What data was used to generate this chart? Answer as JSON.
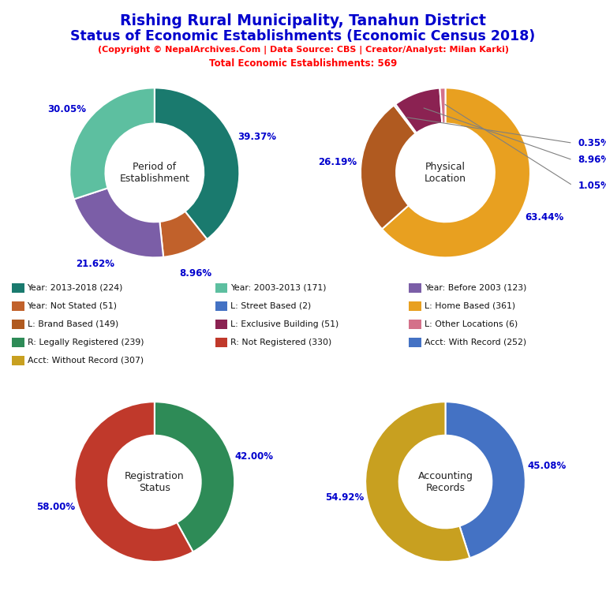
{
  "title_line1": "Rishing Rural Municipality, Tanahun District",
  "title_line2": "Status of Economic Establishments (Economic Census 2018)",
  "subtitle": "(Copyright © NepalArchives.Com | Data Source: CBS | Creator/Analyst: Milan Karki)",
  "total_line": "Total Economic Establishments: 569",
  "title_color": "#0000CD",
  "subtitle_color": "#FF0000",
  "pie1_title": "Period of\nEstablishment",
  "pie1_values": [
    224,
    51,
    123,
    171
  ],
  "pie1_pcts": [
    "39.37%",
    "8.96%",
    "21.62%",
    "30.05%"
  ],
  "pie1_colors": [
    "#1a7a6e",
    "#c1612b",
    "#7b5ea7",
    "#5dbfa0"
  ],
  "pie1_startangle": 90,
  "pie2_title": "Physical\nLocation",
  "pie2_values": [
    361,
    149,
    2,
    51,
    6
  ],
  "pie2_pcts": [
    "63.44%",
    "26.19%",
    "0.35%",
    "8.96%",
    "1.05%"
  ],
  "pie2_colors": [
    "#e8a020",
    "#b05a20",
    "#4472c4",
    "#8b2252",
    "#d4718a"
  ],
  "pie2_startangle": 90,
  "pie3_title": "Registration\nStatus",
  "pie3_values": [
    239,
    330
  ],
  "pie3_pcts": [
    "42.00%",
    "58.00%"
  ],
  "pie3_colors": [
    "#2e8b57",
    "#c0392b"
  ],
  "pie3_startangle": 90,
  "pie4_title": "Accounting\nRecords",
  "pie4_values": [
    252,
    307
  ],
  "pie4_pcts": [
    "45.08%",
    "54.92%"
  ],
  "pie4_colors": [
    "#4472c4",
    "#c8a020"
  ],
  "pie4_startangle": 90,
  "legend_items": [
    {
      "label": "Year: 2013-2018 (224)",
      "color": "#1a7a6e"
    },
    {
      "label": "Year: Not Stated (51)",
      "color": "#c1612b"
    },
    {
      "label": "L: Brand Based (149)",
      "color": "#b05a20"
    },
    {
      "label": "R: Legally Registered (239)",
      "color": "#2e8b57"
    },
    {
      "label": "Acct: Without Record (307)",
      "color": "#c8a020"
    },
    {
      "label": "Year: 2003-2013 (171)",
      "color": "#5dbfa0"
    },
    {
      "label": "L: Street Based (2)",
      "color": "#4472c4"
    },
    {
      "label": "L: Exclusive Building (51)",
      "color": "#8b2252"
    },
    {
      "label": "R: Not Registered (330)",
      "color": "#c0392b"
    },
    {
      "label": "Year: Before 2003 (123)",
      "color": "#7b5ea7"
    },
    {
      "label": "L: Home Based (361)",
      "color": "#e8a020"
    },
    {
      "label": "L: Other Locations (6)",
      "color": "#d4718a"
    },
    {
      "label": "Acct: With Record (252)",
      "color": "#4472c4"
    }
  ],
  "pct_color": "#0000CD",
  "center_text_color": "#222222",
  "bg_color": "#ffffff"
}
